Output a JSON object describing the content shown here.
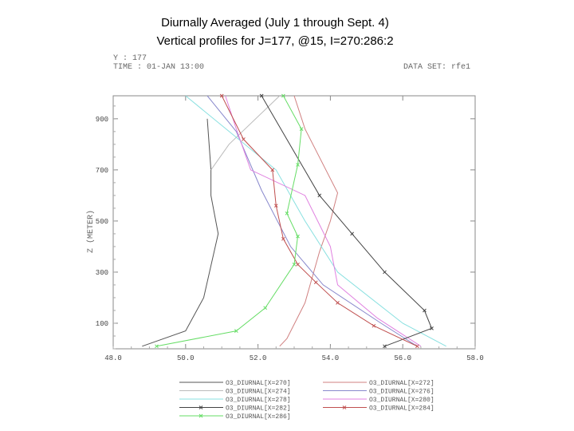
{
  "title_line1": "Diurnally Averaged (July 1 through Sept. 4)",
  "title_line2": "Vertical profiles for J=177, @15, I=270:286:2",
  "header": {
    "line1": "Y : 177",
    "line2": "TIME : 01-JAN 13:00",
    "dataset": "DATA SET: rfe1"
  },
  "chart_data": {
    "type": "line",
    "title": "Diurnally Averaged (July 1 through Sept. 4)",
    "subtitle": "Vertical profiles for J=177, @15, I=270:286:2",
    "xlabel": "",
    "ylabel": "Z (METER)",
    "xlim": [
      48,
      58
    ],
    "ylim": [
      0,
      990
    ],
    "x_ticks": [
      "48.0",
      "50.0",
      "52.0",
      "54.0",
      "56.0",
      "58.0"
    ],
    "y_ticks": [
      "100",
      "300",
      "500",
      "700",
      "900"
    ],
    "y_tick_values": [
      100,
      300,
      500,
      700,
      900
    ],
    "grid": false,
    "legend_position": "bottom",
    "series": [
      {
        "name": "O3_DIURNAL[X=270]",
        "color": "#555555",
        "marker": "none",
        "points": [
          [
            48.8,
            10
          ],
          [
            50.0,
            70
          ],
          [
            50.5,
            200
          ],
          [
            50.9,
            450
          ],
          [
            50.7,
            600
          ],
          [
            50.7,
            700
          ],
          [
            50.6,
            900
          ]
        ]
      },
      {
        "name": "O3_DIURNAL[X=272]",
        "color": "#d08080",
        "marker": "none",
        "points": [
          [
            52.6,
            10
          ],
          [
            52.8,
            40
          ],
          [
            53.3,
            180
          ],
          [
            53.7,
            380
          ],
          [
            54.0,
            500
          ],
          [
            54.2,
            610
          ],
          [
            53.3,
            860
          ],
          [
            53.0,
            990
          ]
        ]
      },
      {
        "name": "O3_DIURNAL[X=274]",
        "color": "#bbbbbb",
        "marker": "none",
        "points": [
          [
            50.7,
            700
          ],
          [
            51.2,
            800
          ],
          [
            52.6,
            990
          ]
        ]
      },
      {
        "name": "O3_DIURNAL[X=276]",
        "color": "#8888cc",
        "marker": "none",
        "points": [
          [
            56.4,
            10
          ],
          [
            55.4,
            100
          ],
          [
            53.8,
            250
          ],
          [
            52.9,
            400
          ],
          [
            52.1,
            620
          ],
          [
            51.4,
            850
          ],
          [
            50.6,
            990
          ]
        ]
      },
      {
        "name": "O3_DIURNAL[X=278]",
        "color": "#88e0e0",
        "marker": "none",
        "points": [
          [
            57.2,
            10
          ],
          [
            56.0,
            100
          ],
          [
            54.2,
            300
          ],
          [
            53.3,
            500
          ],
          [
            52.5,
            700
          ],
          [
            50.0,
            990
          ]
        ]
      },
      {
        "name": "O3_DIURNAL[X=280]",
        "color": "#e080e0",
        "marker": "none",
        "points": [
          [
            56.5,
            10
          ],
          [
            55.3,
            120
          ],
          [
            54.2,
            250
          ],
          [
            54.0,
            400
          ],
          [
            53.3,
            600
          ],
          [
            51.8,
            700
          ],
          [
            51.4,
            860
          ],
          [
            51.1,
            990
          ]
        ]
      },
      {
        "name": "O3_DIURNAL[X=282]",
        "color": "#444444",
        "marker": "x",
        "points": [
          [
            55.5,
            10
          ],
          [
            56.8,
            80
          ],
          [
            56.6,
            150
          ],
          [
            55.5,
            300
          ],
          [
            54.6,
            450
          ],
          [
            53.7,
            600
          ],
          [
            52.1,
            990
          ]
        ]
      },
      {
        "name": "O3_DIURNAL[X=284]",
        "color": "#c05050",
        "marker": "x",
        "points": [
          [
            56.4,
            10
          ],
          [
            55.2,
            90
          ],
          [
            54.2,
            180
          ],
          [
            53.6,
            260
          ],
          [
            53.1,
            330
          ],
          [
            52.7,
            430
          ],
          [
            52.5,
            560
          ],
          [
            52.4,
            700
          ],
          [
            51.6,
            820
          ],
          [
            51.0,
            990
          ]
        ]
      },
      {
        "name": "O3_DIURNAL[X=286]",
        "color": "#66dd66",
        "marker": "x",
        "points": [
          [
            49.2,
            10
          ],
          [
            51.4,
            70
          ],
          [
            52.2,
            160
          ],
          [
            53.0,
            330
          ],
          [
            53.1,
            440
          ],
          [
            52.8,
            530
          ],
          [
            53.1,
            720
          ],
          [
            53.2,
            860
          ],
          [
            52.7,
            990
          ]
        ]
      }
    ]
  }
}
